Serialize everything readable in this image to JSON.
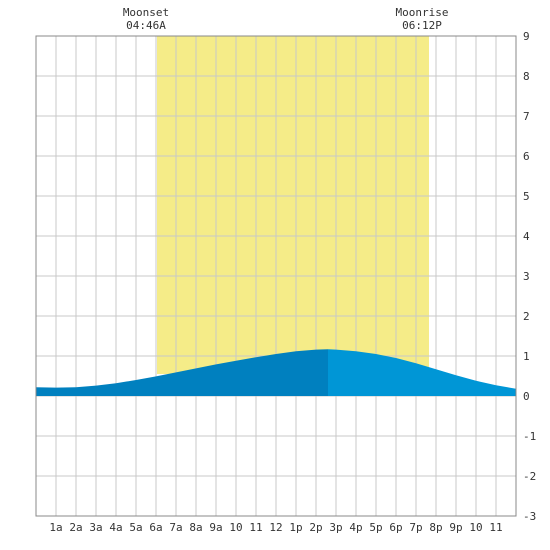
{
  "chart_data": {
    "type": "area",
    "title": "",
    "xlabel": "",
    "ylabel": "",
    "x_tick_labels": [
      "1a",
      "2a",
      "3a",
      "4a",
      "5a",
      "6a",
      "7a",
      "8a",
      "9a",
      "10",
      "11",
      "12",
      "1p",
      "2p",
      "3p",
      "4p",
      "5p",
      "6p",
      "7p",
      "8p",
      "9p",
      "10",
      "11"
    ],
    "xlim_hours": [
      0,
      24
    ],
    "ylim": [
      -3,
      9
    ],
    "y_ticks": [
      9,
      8,
      7,
      6,
      5,
      4,
      3,
      2,
      1,
      0,
      -1,
      -2,
      -3
    ],
    "grid": true,
    "moon_events": [
      {
        "name": "Moonset",
        "time": "04:46A"
      },
      {
        "name": "Moonrise",
        "time": "06:12P"
      }
    ],
    "daylight_hours": [
      6.05,
      19.65
    ],
    "low_tide_hour": 1.2,
    "high_tide_hour": 14.6,
    "split_hour": 14.6,
    "series": [
      {
        "x": [
          0,
          1,
          2,
          3,
          4,
          5,
          6,
          7,
          8,
          9,
          10,
          11,
          12,
          13,
          14,
          14.6,
          15,
          16,
          17,
          18,
          19,
          20,
          21,
          22,
          23,
          24
        ],
        "values": [
          0.22,
          0.21,
          0.22,
          0.26,
          0.32,
          0.4,
          0.49,
          0.59,
          0.69,
          0.79,
          0.88,
          0.97,
          1.05,
          1.12,
          1.16,
          1.17,
          1.16,
          1.12,
          1.05,
          0.95,
          0.82,
          0.67,
          0.52,
          0.38,
          0.27,
          0.18
        ]
      }
    ],
    "colors": {
      "daylight": "#f5ec88",
      "tide_dark": "#0080bf",
      "tide_light": "#0096d6",
      "grid": "#c8c8c8",
      "frame": "#888888",
      "text": "#333333"
    }
  }
}
